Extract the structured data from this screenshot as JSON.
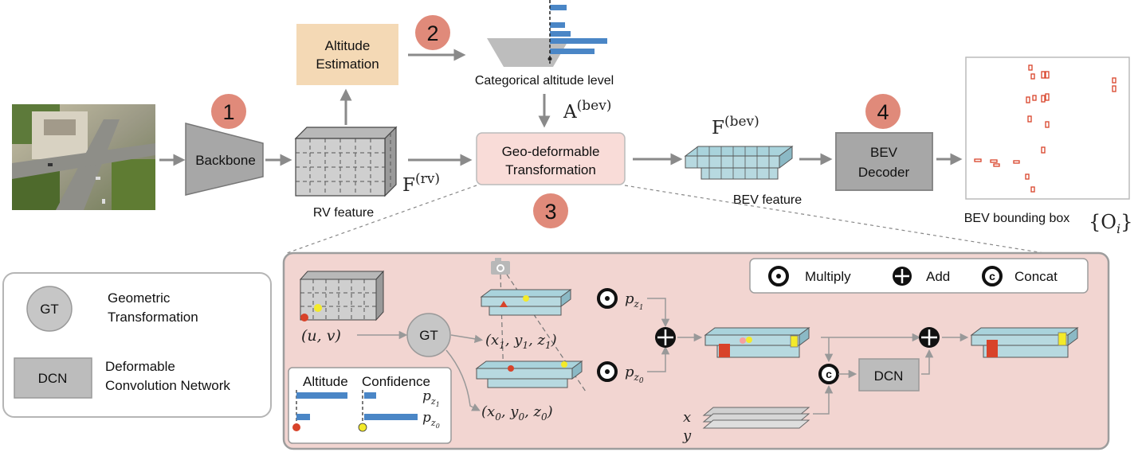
{
  "top": {
    "backbone_label": "Backbone",
    "rv_feature_label": "RV feature",
    "altitude_label_1": "Altitude",
    "altitude_label_2": "Estimation",
    "categorical_label": "Categorical altitude level",
    "a_bev_label": "A",
    "a_bev_sup": "(bev)",
    "f_rv_label": "F",
    "f_rv_sup": "(rv)",
    "geo_label_1": "Geo-deformable",
    "geo_label_2": "Transformation",
    "f_bev_label": "F",
    "f_bev_sup": "(bev)",
    "bev_feature_label": "BEV feature",
    "decoder_label_1": "BEV",
    "decoder_label_2": "Decoder",
    "bbox_label": "BEV bounding box",
    "bbox_math": "{O",
    "bbox_math_sub": "i",
    "bbox_math_close": "}",
    "step1": "1",
    "step2": "2",
    "step3": "3",
    "step4": "4"
  },
  "legend": {
    "gt_circle": "GT",
    "gt_desc_1": "Geometric",
    "gt_desc_2": "Transformation",
    "dcn_box": "DCN",
    "dcn_desc_1": "Deformable",
    "dcn_desc_2": "Convolution Network"
  },
  "detail": {
    "ops_multiply": "Multiply",
    "ops_add": "Add",
    "ops_concat": "Concat",
    "uv_label": "(u, v)",
    "gt_label": "GT",
    "x1_label": "(x",
    "x1_rest": "1",
    "x1_y": ", y",
    "x1_z": ", z",
    "x1_close": ")",
    "x0_sub": "0",
    "pz1_label": "p",
    "pz1_sub": "z",
    "pz1_subsub": "1",
    "pz0_subsub": "0",
    "dcn_label": "DCN",
    "x_label": "x",
    "y_label": "y",
    "altitude_head": "Altitude",
    "confidence_head": "Confidence",
    "concat_glyph": "c"
  },
  "colors": {
    "step_circle": "#e08a7a",
    "altitude_box": "#f4d9b5",
    "geo_box": "#f9dcd8",
    "detail_bg": "#f2d5d1",
    "gray_box": "#a7a7a7",
    "cube_fill": "#b7d9e0",
    "bar_blue": "#4a86c6",
    "red_dot": "#d8432a",
    "yellow_dot": "#f3ea2a",
    "bbox_red": "#d8432a"
  }
}
